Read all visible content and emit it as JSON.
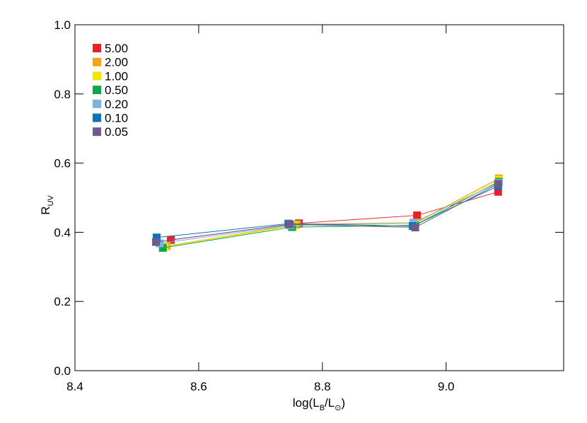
{
  "chart_data": {
    "type": "line",
    "xlabel": [
      "log(L",
      "B",
      "/L",
      "⊙",
      ")"
    ],
    "ylabel": [
      "R",
      "UV"
    ],
    "xlim": [
      8.4,
      9.19
    ],
    "ylim": [
      0,
      1
    ],
    "xticks": [
      8.4,
      8.6,
      8.8,
      {
        "value": 9,
        "label": "9.0"
      }
    ],
    "yticks": [
      {
        "value": 0,
        "label": "0.0"
      },
      0.2,
      0.4,
      0.6,
      0.8,
      {
        "value": 1,
        "label": "1.0"
      }
    ],
    "legend": "upper left",
    "series": [
      {
        "name": "5.00",
        "color": "#e8202a",
        "x": [
          8.555,
          8.762,
          8.953,
          9.084
        ],
        "values": [
          0.378,
          0.426,
          0.449,
          0.517
        ]
      },
      {
        "name": "2.00",
        "color": "#f7a21b",
        "x": [
          8.548,
          8.759,
          8.951,
          9.085
        ],
        "values": [
          0.36,
          0.423,
          0.428,
          0.556
        ]
      },
      {
        "name": "1.00",
        "color": "#f2e500",
        "x": [
          8.545,
          8.755,
          8.95,
          9.085
        ],
        "values": [
          0.358,
          0.42,
          0.425,
          0.552
        ]
      },
      {
        "name": "0.50",
        "color": "#0ca74b",
        "x": [
          8.542,
          8.751,
          8.949,
          9.085
        ],
        "values": [
          0.355,
          0.415,
          0.42,
          0.546
        ]
      },
      {
        "name": "0.20",
        "color": "#7fb3de",
        "x": [
          8.537,
          8.748,
          8.947,
          9.085
        ],
        "values": [
          0.368,
          0.42,
          0.428,
          0.543
        ]
      },
      {
        "name": "0.10",
        "color": "#0f73b9",
        "x": [
          8.532,
          8.745,
          8.946,
          9.084
        ],
        "values": [
          0.385,
          0.425,
          0.418,
          0.534
        ]
      },
      {
        "name": "0.05",
        "color": "#6f5a8c",
        "x": [
          8.531,
          8.747,
          8.95,
          9.084
        ],
        "values": [
          0.372,
          0.423,
          0.414,
          0.54
        ]
      }
    ]
  }
}
